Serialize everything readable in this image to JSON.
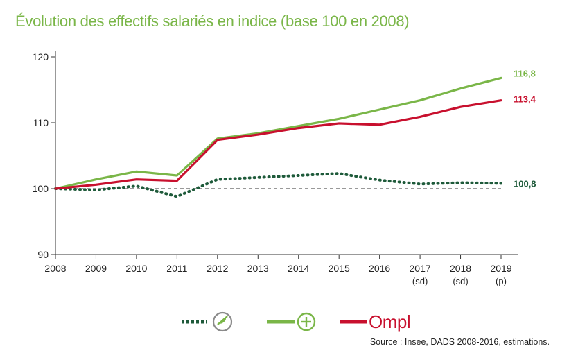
{
  "chart_data": {
    "type": "line",
    "title": "Évolution des effectifs salariés en indice (base 100 en 2008)",
    "x": [
      "2008",
      "2009",
      "2010",
      "2011",
      "2012",
      "2013",
      "2014",
      "2015",
      "2016",
      "2017",
      "2018",
      "2019"
    ],
    "x_sublabels": [
      "",
      "",
      "",
      "",
      "",
      "",
      "",
      "",
      "",
      "(sd)",
      "(sd)",
      "(p)"
    ],
    "ylim": [
      90,
      120
    ],
    "yticks": [
      90,
      100,
      110,
      120
    ],
    "reference_line": 100,
    "series": [
      {
        "legend": "dotted-icon-series",
        "color": "#1e5a3a",
        "style": "dotted",
        "values": [
          100,
          99.8,
          100.4,
          98.8,
          101.4,
          101.7,
          102.0,
          102.3,
          101.3,
          100.7,
          100.9,
          100.8
        ],
        "end_label": "100,8"
      },
      {
        "legend": "plus-icon-series",
        "color": "#7ab648",
        "style": "solid",
        "values": [
          100,
          101.4,
          102.6,
          102.0,
          107.6,
          108.4,
          109.5,
          110.6,
          112.0,
          113.4,
          115.2,
          116.8
        ],
        "end_label": "116,8"
      },
      {
        "name": "Ompl",
        "color": "#c8102e",
        "style": "solid",
        "values": [
          100,
          100.6,
          101.4,
          101.2,
          107.4,
          108.2,
          109.2,
          109.9,
          109.7,
          110.9,
          112.4,
          113.4
        ],
        "end_label": "113,4"
      }
    ]
  },
  "legend": {
    "ompl_label": "Ompl"
  },
  "source": "Source : Insee, DADS 2008-2016, estimations."
}
